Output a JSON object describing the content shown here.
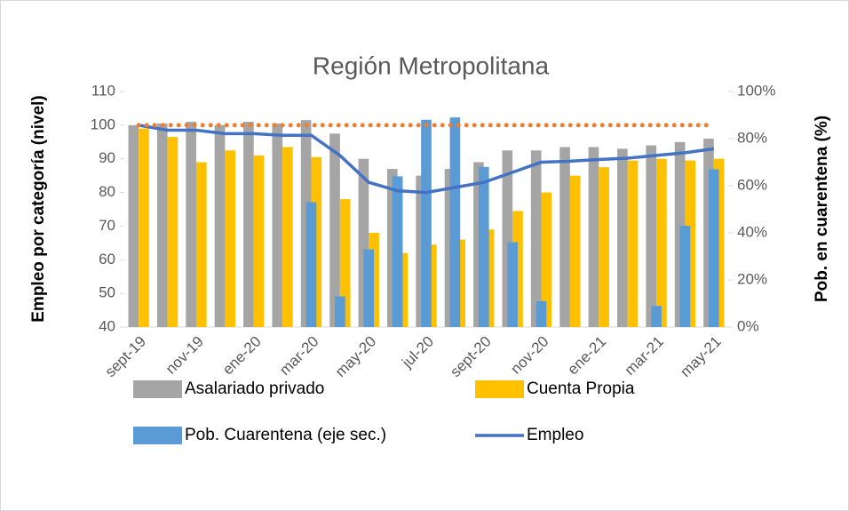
{
  "chart_data": {
    "type": "bar",
    "title": "Región Metropolitana",
    "y_label": "Empleo por categoría (nivel)",
    "y2_label": "Pob. en cuarentena (%)",
    "categories": [
      "sept-19",
      null,
      "nov-19",
      null,
      "ene-20",
      null,
      "mar-20",
      null,
      "may-20",
      null,
      "jul-20",
      null,
      "sept-20",
      null,
      "nov-20",
      null,
      "ene-21",
      null,
      "mar-21",
      null,
      "may-21"
    ],
    "series": [
      {
        "name": "Asalariado privado",
        "color": "#a5a5a5",
        "kind": "bar",
        "values": [
          100,
          100.5,
          101,
          100,
          101,
          100.5,
          101.5,
          97.5,
          90,
          87,
          85,
          87,
          89,
          92.5,
          92.5,
          93.5,
          93.5,
          93,
          94,
          95,
          96
        ]
      },
      {
        "name": "Cuenta Propia",
        "color": "#ffc000",
        "kind": "bar",
        "values": [
          99,
          96.5,
          89,
          92.5,
          91,
          93.5,
          90.5,
          78,
          68,
          62,
          64.5,
          66,
          69,
          74.5,
          80,
          85,
          87.5,
          89.5,
          90,
          89.5,
          90
        ]
      },
      {
        "name": "Pob. Cuarentena (eje sec.)",
        "color": "#5b9bd5",
        "kind": "bar",
        "axis": "y2",
        "values": [
          0,
          0,
          0,
          0,
          0,
          0,
          53,
          13,
          33,
          64,
          88,
          89,
          68,
          36,
          11,
          0,
          0,
          0,
          9,
          43,
          67
        ]
      },
      {
        "name": "Empleo",
        "color": "#4472c4",
        "kind": "line",
        "values": [
          100,
          98.5,
          98.5,
          97.5,
          97.5,
          97,
          97,
          91,
          83,
          80.5,
          80,
          81.5,
          83,
          86,
          89,
          89.3,
          89.8,
          90.2,
          91,
          91.8,
          93
        ]
      },
      {
        "color": "#ed7d31",
        "kind": "dotted",
        "values": [
          100,
          100,
          100,
          100,
          100,
          100,
          100,
          100,
          100,
          100,
          100,
          100,
          100,
          100,
          100,
          100,
          100,
          100,
          100,
          100,
          100
        ]
      }
    ],
    "ylim": [
      40,
      110
    ],
    "yticks": [
      40,
      50,
      60,
      70,
      80,
      90,
      100,
      110
    ],
    "y2lim": [
      0,
      100
    ],
    "y2ticks": [
      {
        "value": 0,
        "label": "0%"
      },
      {
        "value": 20,
        "label": "20%"
      },
      {
        "value": 40,
        "label": "40%"
      },
      {
        "value": 60,
        "label": "60%"
      },
      {
        "value": 80,
        "label": "80%"
      },
      {
        "value": 100,
        "label": "100%"
      }
    ],
    "grid": false,
    "legend": "bottom"
  }
}
